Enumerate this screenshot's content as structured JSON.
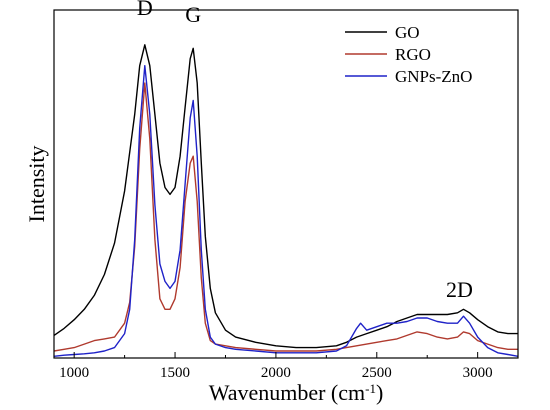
{
  "chart_data": {
    "type": "line",
    "title": "",
    "xlabel": "Wavenumber (cm",
    "xlabel_sup": "-1",
    "xlabel_close": ")",
    "ylabel": "Intensity",
    "xlim": [
      900,
      3200
    ],
    "ylim": [
      0,
      1
    ],
    "xticks": [
      1000,
      1500,
      2000,
      2500,
      3000
    ],
    "xtick_labels": [
      "1000",
      "1500",
      "2000",
      "2500",
      "3000"
    ],
    "y_tick_labels_shown": false,
    "grid": false,
    "legend_position": "top-right",
    "annotations": [
      {
        "text": "D",
        "x": 1350,
        "y": 0.985
      },
      {
        "text": "G",
        "x": 1590,
        "y": 0.965
      },
      {
        "text": "2D",
        "x": 2910,
        "y": 0.175
      }
    ],
    "series": [
      {
        "name": "GO",
        "color": "#000000",
        "x": [
          900,
          950,
          1000,
          1050,
          1100,
          1150,
          1200,
          1250,
          1300,
          1325,
          1350,
          1375,
          1400,
          1425,
          1450,
          1475,
          1500,
          1525,
          1550,
          1575,
          1590,
          1610,
          1630,
          1650,
          1675,
          1700,
          1750,
          1800,
          1900,
          2000,
          2100,
          2200,
          2300,
          2350,
          2400,
          2450,
          2500,
          2550,
          2600,
          2650,
          2700,
          2750,
          2800,
          2850,
          2900,
          2930,
          2960,
          3000,
          3050,
          3100,
          3150,
          3200
        ],
        "y": [
          0.065,
          0.085,
          0.11,
          0.14,
          0.18,
          0.24,
          0.33,
          0.48,
          0.7,
          0.84,
          0.9,
          0.84,
          0.7,
          0.56,
          0.49,
          0.47,
          0.49,
          0.58,
          0.72,
          0.86,
          0.89,
          0.79,
          0.56,
          0.35,
          0.2,
          0.13,
          0.08,
          0.06,
          0.045,
          0.035,
          0.03,
          0.03,
          0.035,
          0.045,
          0.06,
          0.07,
          0.08,
          0.09,
          0.105,
          0.115,
          0.125,
          0.125,
          0.125,
          0.125,
          0.13,
          0.14,
          0.13,
          0.11,
          0.09,
          0.075,
          0.07,
          0.07
        ]
      },
      {
        "name": "RGO",
        "color": "#b03a2e",
        "x": [
          900,
          950,
          1000,
          1050,
          1100,
          1150,
          1200,
          1250,
          1275,
          1300,
          1325,
          1350,
          1375,
          1400,
          1425,
          1450,
          1475,
          1500,
          1525,
          1550,
          1575,
          1590,
          1610,
          1630,
          1650,
          1675,
          1700,
          1750,
          1800,
          1900,
          2000,
          2100,
          2200,
          2300,
          2400,
          2500,
          2550,
          2600,
          2650,
          2700,
          2750,
          2800,
          2850,
          2900,
          2930,
          2960,
          3000,
          3050,
          3100,
          3150,
          3200
        ],
        "y": [
          0.02,
          0.025,
          0.03,
          0.04,
          0.05,
          0.055,
          0.06,
          0.1,
          0.16,
          0.32,
          0.6,
          0.79,
          0.63,
          0.34,
          0.17,
          0.14,
          0.14,
          0.17,
          0.26,
          0.45,
          0.56,
          0.58,
          0.45,
          0.23,
          0.1,
          0.05,
          0.04,
          0.035,
          0.03,
          0.025,
          0.02,
          0.02,
          0.02,
          0.025,
          0.035,
          0.045,
          0.05,
          0.055,
          0.065,
          0.075,
          0.07,
          0.06,
          0.055,
          0.06,
          0.075,
          0.07,
          0.05,
          0.04,
          0.03,
          0.025,
          0.025
        ]
      },
      {
        "name": "GNPs-ZnO",
        "color": "#1f22c8",
        "x": [
          900,
          950,
          1000,
          1050,
          1100,
          1150,
          1200,
          1250,
          1275,
          1300,
          1325,
          1350,
          1375,
          1400,
          1425,
          1450,
          1475,
          1500,
          1525,
          1550,
          1575,
          1590,
          1610,
          1630,
          1650,
          1675,
          1700,
          1750,
          1800,
          1900,
          2000,
          2100,
          2200,
          2300,
          2350,
          2400,
          2420,
          2450,
          2500,
          2550,
          2600,
          2650,
          2700,
          2750,
          2800,
          2850,
          2900,
          2930,
          2960,
          3000,
          3050,
          3100,
          3150,
          3200
        ],
        "y": [
          0.005,
          0.008,
          0.01,
          0.012,
          0.015,
          0.02,
          0.03,
          0.07,
          0.14,
          0.34,
          0.66,
          0.84,
          0.7,
          0.44,
          0.27,
          0.22,
          0.2,
          0.22,
          0.31,
          0.5,
          0.69,
          0.74,
          0.58,
          0.31,
          0.14,
          0.06,
          0.04,
          0.03,
          0.025,
          0.02,
          0.015,
          0.015,
          0.015,
          0.02,
          0.035,
          0.085,
          0.1,
          0.08,
          0.09,
          0.1,
          0.1,
          0.105,
          0.115,
          0.115,
          0.105,
          0.1,
          0.1,
          0.12,
          0.1,
          0.06,
          0.03,
          0.015,
          0.01,
          0.005
        ]
      }
    ]
  }
}
